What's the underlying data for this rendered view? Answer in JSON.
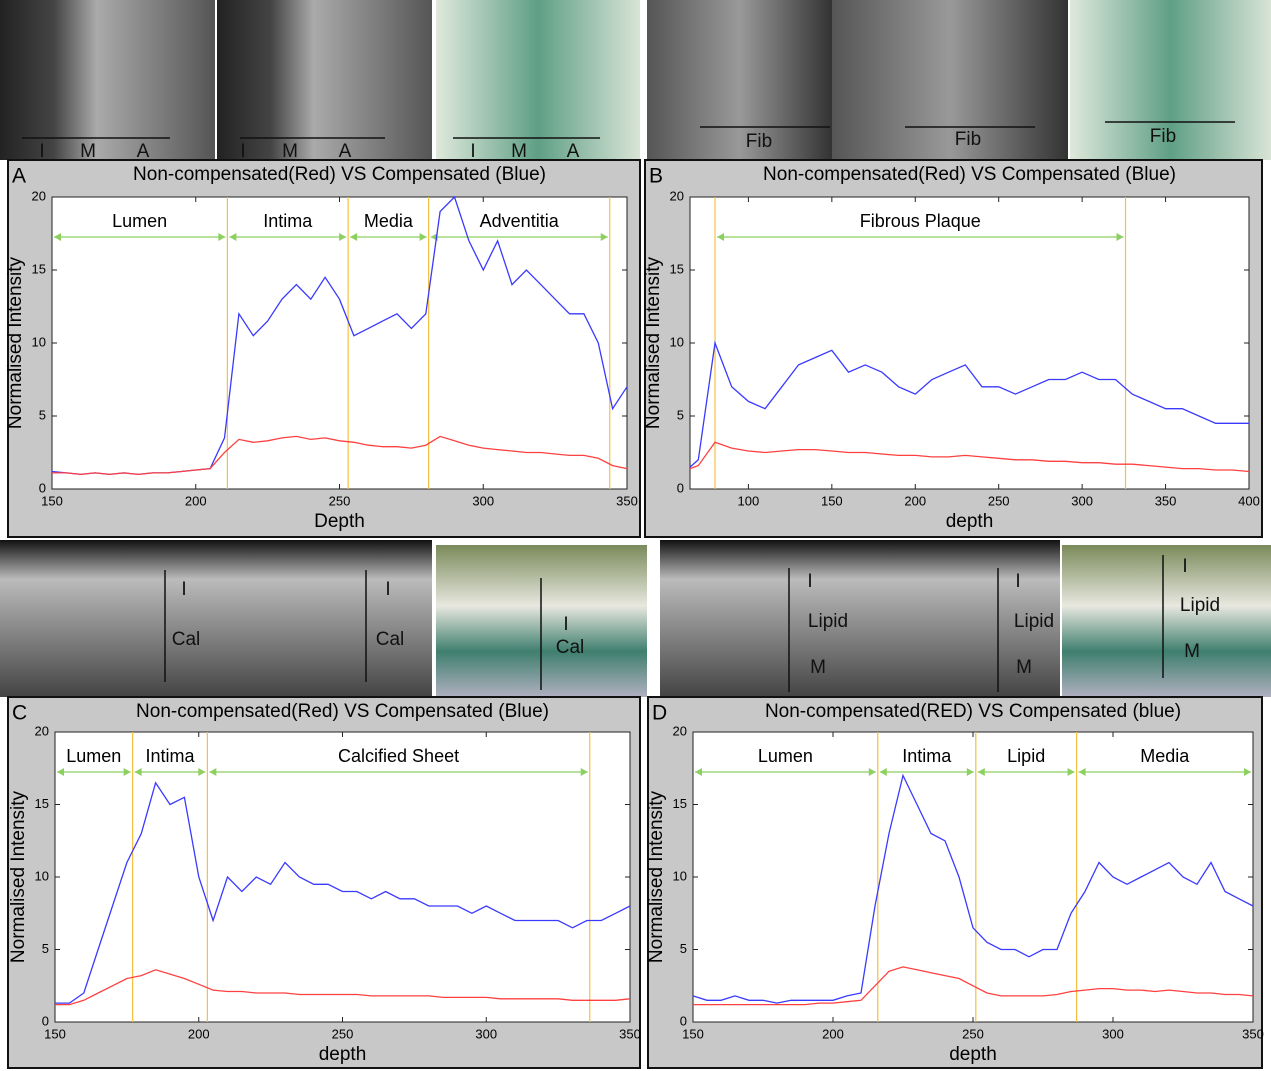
{
  "images": [
    {
      "labels": [
        "I",
        "M",
        "A"
      ]
    },
    {
      "labels": [
        "I",
        "M",
        "A"
      ]
    },
    {
      "labels": [
        "I",
        "M",
        "A"
      ]
    },
    {
      "labels": [
        "Fib"
      ]
    },
    {
      "labels": [
        "Fib"
      ]
    },
    {
      "labels": [
        "Fib"
      ]
    },
    {
      "labels": [
        "I",
        "Cal"
      ]
    },
    {
      "labels": [
        "I",
        "Cal"
      ]
    },
    {
      "labels": [
        "I",
        "Cal"
      ]
    },
    {
      "labels": [
        "I",
        "Lipid",
        "M"
      ]
    },
    {
      "labels": [
        "I",
        "Lipid",
        "M"
      ]
    },
    {
      "labels": [
        "I",
        "Lipid",
        "M"
      ]
    }
  ],
  "chart_data": [
    {
      "type": "line",
      "panel": "A",
      "title": "Non-compensated(Red) VS Compensated (Blue)",
      "xlabel": "Depth",
      "ylabel": "Normalised Intensity",
      "xlim": [
        150,
        350
      ],
      "ylim": [
        0,
        20
      ],
      "xticks": [
        150,
        200,
        250,
        300,
        350
      ],
      "yticks": [
        0,
        5,
        10,
        15,
        20
      ],
      "boundaries": [
        211,
        253,
        281,
        344
      ],
      "regions": [
        {
          "label": "Lumen",
          "start": 150,
          "end": 211
        },
        {
          "label": "Intima",
          "start": 211,
          "end": 253
        },
        {
          "label": "Media",
          "start": 253,
          "end": 281
        },
        {
          "label": "Adventitia",
          "start": 281,
          "end": 344
        }
      ],
      "x": [
        150,
        155,
        160,
        165,
        170,
        175,
        180,
        185,
        190,
        195,
        200,
        205,
        210,
        215,
        220,
        225,
        230,
        235,
        240,
        245,
        250,
        255,
        260,
        265,
        270,
        275,
        280,
        285,
        290,
        295,
        300,
        305,
        310,
        315,
        320,
        325,
        330,
        335,
        340,
        345,
        350
      ],
      "series": [
        {
          "color": "#3a3aff",
          "values": [
            1.2,
            1.1,
            1.0,
            1.1,
            1.0,
            1.1,
            1.0,
            1.1,
            1.1,
            1.2,
            1.3,
            1.4,
            3.5,
            12,
            10.5,
            11.5,
            13,
            14,
            13,
            14.5,
            13,
            10.5,
            11,
            11.5,
            12,
            11,
            12,
            19,
            20,
            17,
            15,
            17,
            14,
            15,
            14,
            13,
            12,
            12,
            10,
            5.5,
            7
          ]
        },
        {
          "color": "#ff4040",
          "values": [
            1.1,
            1.1,
            1.0,
            1.1,
            1.0,
            1.1,
            1.0,
            1.1,
            1.1,
            1.2,
            1.3,
            1.4,
            2.5,
            3.4,
            3.2,
            3.3,
            3.5,
            3.6,
            3.4,
            3.5,
            3.3,
            3.2,
            3.0,
            2.9,
            2.9,
            2.8,
            3.0,
            3.6,
            3.3,
            3.0,
            2.8,
            2.7,
            2.6,
            2.5,
            2.5,
            2.4,
            2.3,
            2.3,
            2.1,
            1.6,
            1.4
          ]
        }
      ]
    },
    {
      "type": "line",
      "panel": "B",
      "title": "Non-compensated(Red) VS Compensated (Blue)",
      "xlabel": "depth",
      "ylabel": "Normalised Intensity",
      "xlim": [
        65,
        400
      ],
      "ylim": [
        0,
        20
      ],
      "xticks": [
        100,
        150,
        200,
        250,
        300,
        350,
        400
      ],
      "yticks": [
        0,
        5,
        10,
        15,
        20
      ],
      "boundaries": [
        80,
        326
      ],
      "regions": [
        {
          "label": "Fibrous Plaque",
          "start": 80,
          "end": 326
        }
      ],
      "x": [
        65,
        70,
        80,
        90,
        100,
        110,
        120,
        130,
        140,
        150,
        160,
        170,
        180,
        190,
        200,
        210,
        220,
        230,
        240,
        250,
        260,
        270,
        280,
        290,
        300,
        310,
        320,
        330,
        340,
        350,
        360,
        370,
        380,
        390,
        400
      ],
      "series": [
        {
          "color": "#3a3aff",
          "values": [
            1.5,
            2,
            10,
            7,
            6,
            5.5,
            7,
            8.5,
            9,
            9.5,
            8,
            8.5,
            8,
            7,
            6.5,
            7.5,
            8,
            8.5,
            7,
            7,
            6.5,
            7,
            7.5,
            7.5,
            8,
            7.5,
            7.5,
            6.5,
            6,
            5.5,
            5.5,
            5,
            4.5,
            4.5,
            4.5
          ]
        },
        {
          "color": "#ff4040",
          "values": [
            1.4,
            1.6,
            3.2,
            2.8,
            2.6,
            2.5,
            2.6,
            2.7,
            2.7,
            2.6,
            2.5,
            2.5,
            2.4,
            2.3,
            2.3,
            2.2,
            2.2,
            2.3,
            2.2,
            2.1,
            2.0,
            2.0,
            1.9,
            1.9,
            1.8,
            1.8,
            1.7,
            1.7,
            1.6,
            1.5,
            1.4,
            1.4,
            1.3,
            1.3,
            1.2
          ]
        }
      ]
    },
    {
      "type": "line",
      "panel": "C",
      "title": "Non-compensated(Red) VS Compensated (Blue)",
      "xlabel": "depth",
      "ylabel": "Normalised Intensity",
      "xlim": [
        150,
        350
      ],
      "ylim": [
        0,
        20
      ],
      "xticks": [
        150,
        200,
        250,
        300,
        350
      ],
      "yticks": [
        0,
        5,
        10,
        15,
        20
      ],
      "boundaries": [
        177,
        203,
        336
      ],
      "regions": [
        {
          "label": "Lumen",
          "start": 150,
          "end": 177
        },
        {
          "label": "Intima",
          "start": 177,
          "end": 203
        },
        {
          "label": "Calcified Sheet",
          "start": 203,
          "end": 336
        }
      ],
      "x": [
        150,
        155,
        160,
        165,
        170,
        175,
        180,
        185,
        190,
        195,
        200,
        205,
        210,
        215,
        220,
        225,
        230,
        235,
        240,
        245,
        250,
        255,
        260,
        265,
        270,
        275,
        280,
        285,
        290,
        295,
        300,
        305,
        310,
        315,
        320,
        325,
        330,
        335,
        340,
        345,
        350
      ],
      "series": [
        {
          "color": "#3a3aff",
          "values": [
            1.3,
            1.3,
            2,
            5,
            8,
            11,
            13,
            16.5,
            15,
            15.5,
            10,
            7,
            10,
            9,
            10,
            9.5,
            11,
            10,
            9.5,
            9.5,
            9,
            9,
            8.5,
            9,
            8.5,
            8.5,
            8,
            8,
            8,
            7.5,
            8,
            7.5,
            7,
            7,
            7,
            7,
            6.5,
            7,
            7,
            7.5,
            8
          ]
        },
        {
          "color": "#ff4040",
          "values": [
            1.2,
            1.2,
            1.5,
            2,
            2.5,
            3,
            3.2,
            3.6,
            3.3,
            3,
            2.6,
            2.2,
            2.1,
            2.1,
            2.0,
            2.0,
            2.0,
            1.9,
            1.9,
            1.9,
            1.9,
            1.9,
            1.8,
            1.8,
            1.8,
            1.8,
            1.8,
            1.7,
            1.7,
            1.7,
            1.7,
            1.6,
            1.6,
            1.6,
            1.6,
            1.6,
            1.5,
            1.5,
            1.5,
            1.5,
            1.6
          ]
        }
      ]
    },
    {
      "type": "line",
      "panel": "D",
      "title": "Non-compensated(RED) VS Compensated (blue)",
      "xlabel": "depth",
      "ylabel": "Normalised Intensity",
      "xlim": [
        150,
        350
      ],
      "ylim": [
        0,
        20
      ],
      "xticks": [
        150,
        200,
        250,
        300,
        350
      ],
      "yticks": [
        0,
        5,
        10,
        15,
        20
      ],
      "boundaries": [
        216,
        251,
        287
      ],
      "regions": [
        {
          "label": "Lumen",
          "start": 150,
          "end": 216
        },
        {
          "label": "Intima",
          "start": 216,
          "end": 251
        },
        {
          "label": "Lipid",
          "start": 251,
          "end": 287
        },
        {
          "label": "Media",
          "start": 287,
          "end": 350
        }
      ],
      "x": [
        150,
        155,
        160,
        165,
        170,
        175,
        180,
        185,
        190,
        195,
        200,
        205,
        210,
        215,
        220,
        225,
        230,
        235,
        240,
        245,
        250,
        255,
        260,
        265,
        270,
        275,
        280,
        285,
        290,
        295,
        300,
        305,
        310,
        315,
        320,
        325,
        330,
        335,
        340,
        345,
        350
      ],
      "series": [
        {
          "color": "#3a3aff",
          "values": [
            1.8,
            1.5,
            1.5,
            1.8,
            1.5,
            1.5,
            1.3,
            1.5,
            1.5,
            1.5,
            1.5,
            1.8,
            2,
            8,
            13,
            17,
            15,
            13,
            12.5,
            10,
            6.5,
            5.5,
            5,
            5,
            4.5,
            5,
            5,
            7.5,
            9,
            11,
            10,
            9.5,
            10,
            10.5,
            11,
            10,
            9.5,
            11,
            9,
            8.5,
            8
          ]
        },
        {
          "color": "#ff4040",
          "values": [
            1.2,
            1.2,
            1.2,
            1.2,
            1.2,
            1.2,
            1.2,
            1.2,
            1.2,
            1.3,
            1.3,
            1.4,
            1.5,
            2.5,
            3.5,
            3.8,
            3.6,
            3.4,
            3.2,
            3,
            2.5,
            2,
            1.8,
            1.8,
            1.8,
            1.8,
            1.9,
            2.1,
            2.2,
            2.3,
            2.3,
            2.2,
            2.2,
            2.1,
            2.2,
            2.1,
            2.0,
            2.0,
            1.9,
            1.9,
            1.8
          ]
        }
      ]
    }
  ]
}
